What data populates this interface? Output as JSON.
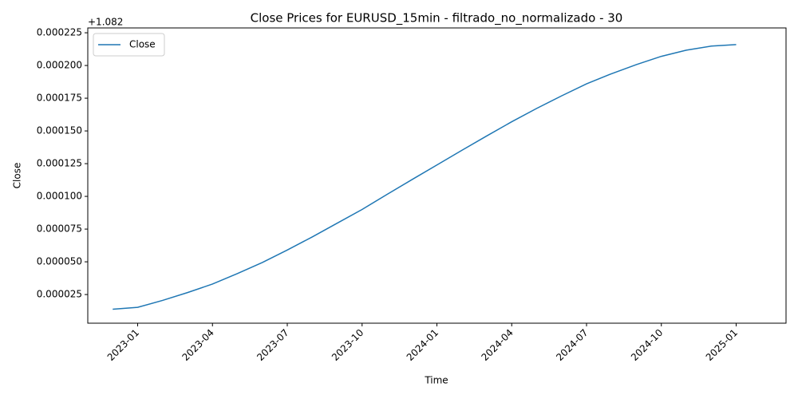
{
  "chart_data": {
    "type": "line",
    "title": "Close Prices for EURUSD_15min - filtrado_no_normalizado - 30",
    "x_label": "Time",
    "y_label": "Close",
    "y_offset_label": "+1.082",
    "x": [
      "2022-12",
      "2023-01",
      "2023-02",
      "2023-03",
      "2023-04",
      "2023-05",
      "2023-06",
      "2023-07",
      "2023-08",
      "2023-09",
      "2023-10",
      "2023-11",
      "2023-12",
      "2024-01",
      "2024-02",
      "2024-03",
      "2024-04",
      "2024-05",
      "2024-06",
      "2024-07",
      "2024-08",
      "2024-09",
      "2024-10",
      "2024-11",
      "2024-12",
      "2025-01"
    ],
    "series": [
      {
        "name": "Close",
        "color": "#1f77b4",
        "values": [
          1.38e-05,
          1.52e-05,
          2.05e-05,
          2.65e-05,
          3.3e-05,
          4.1e-05,
          4.95e-05,
          5.9e-05,
          6.9e-05,
          7.95e-05,
          9e-05,
          0.0001015,
          0.0001128,
          0.000124,
          0.0001352,
          0.0001462,
          0.000157,
          0.0001672,
          0.0001768,
          0.000186,
          0.0001937,
          0.0002007,
          0.000207,
          0.0002117,
          0.0002148,
          0.000216
        ]
      }
    ],
    "xlim": [
      "2022-11",
      "2025-03"
    ],
    "xticks": [
      "2023-01",
      "2023-04",
      "2023-07",
      "2023-10",
      "2024-01",
      "2024-04",
      "2024-07",
      "2024-10",
      "2025-01"
    ],
    "ylim": [
      3.1e-06,
      0.0002287
    ],
    "yticks": [
      {
        "value": 2.5e-05,
        "label": "0.000025"
      },
      {
        "value": 5e-05,
        "label": "0.000050"
      },
      {
        "value": 7.5e-05,
        "label": "0.000075"
      },
      {
        "value": 0.0001,
        "label": "0.000100"
      },
      {
        "value": 0.000125,
        "label": "0.000125"
      },
      {
        "value": 0.00015,
        "label": "0.000150"
      },
      {
        "value": 0.000175,
        "label": "0.000175"
      },
      {
        "value": 0.0002,
        "label": "0.000200"
      },
      {
        "value": 0.000225,
        "label": "0.000225"
      }
    ],
    "grid": false,
    "legend": "upper left"
  }
}
